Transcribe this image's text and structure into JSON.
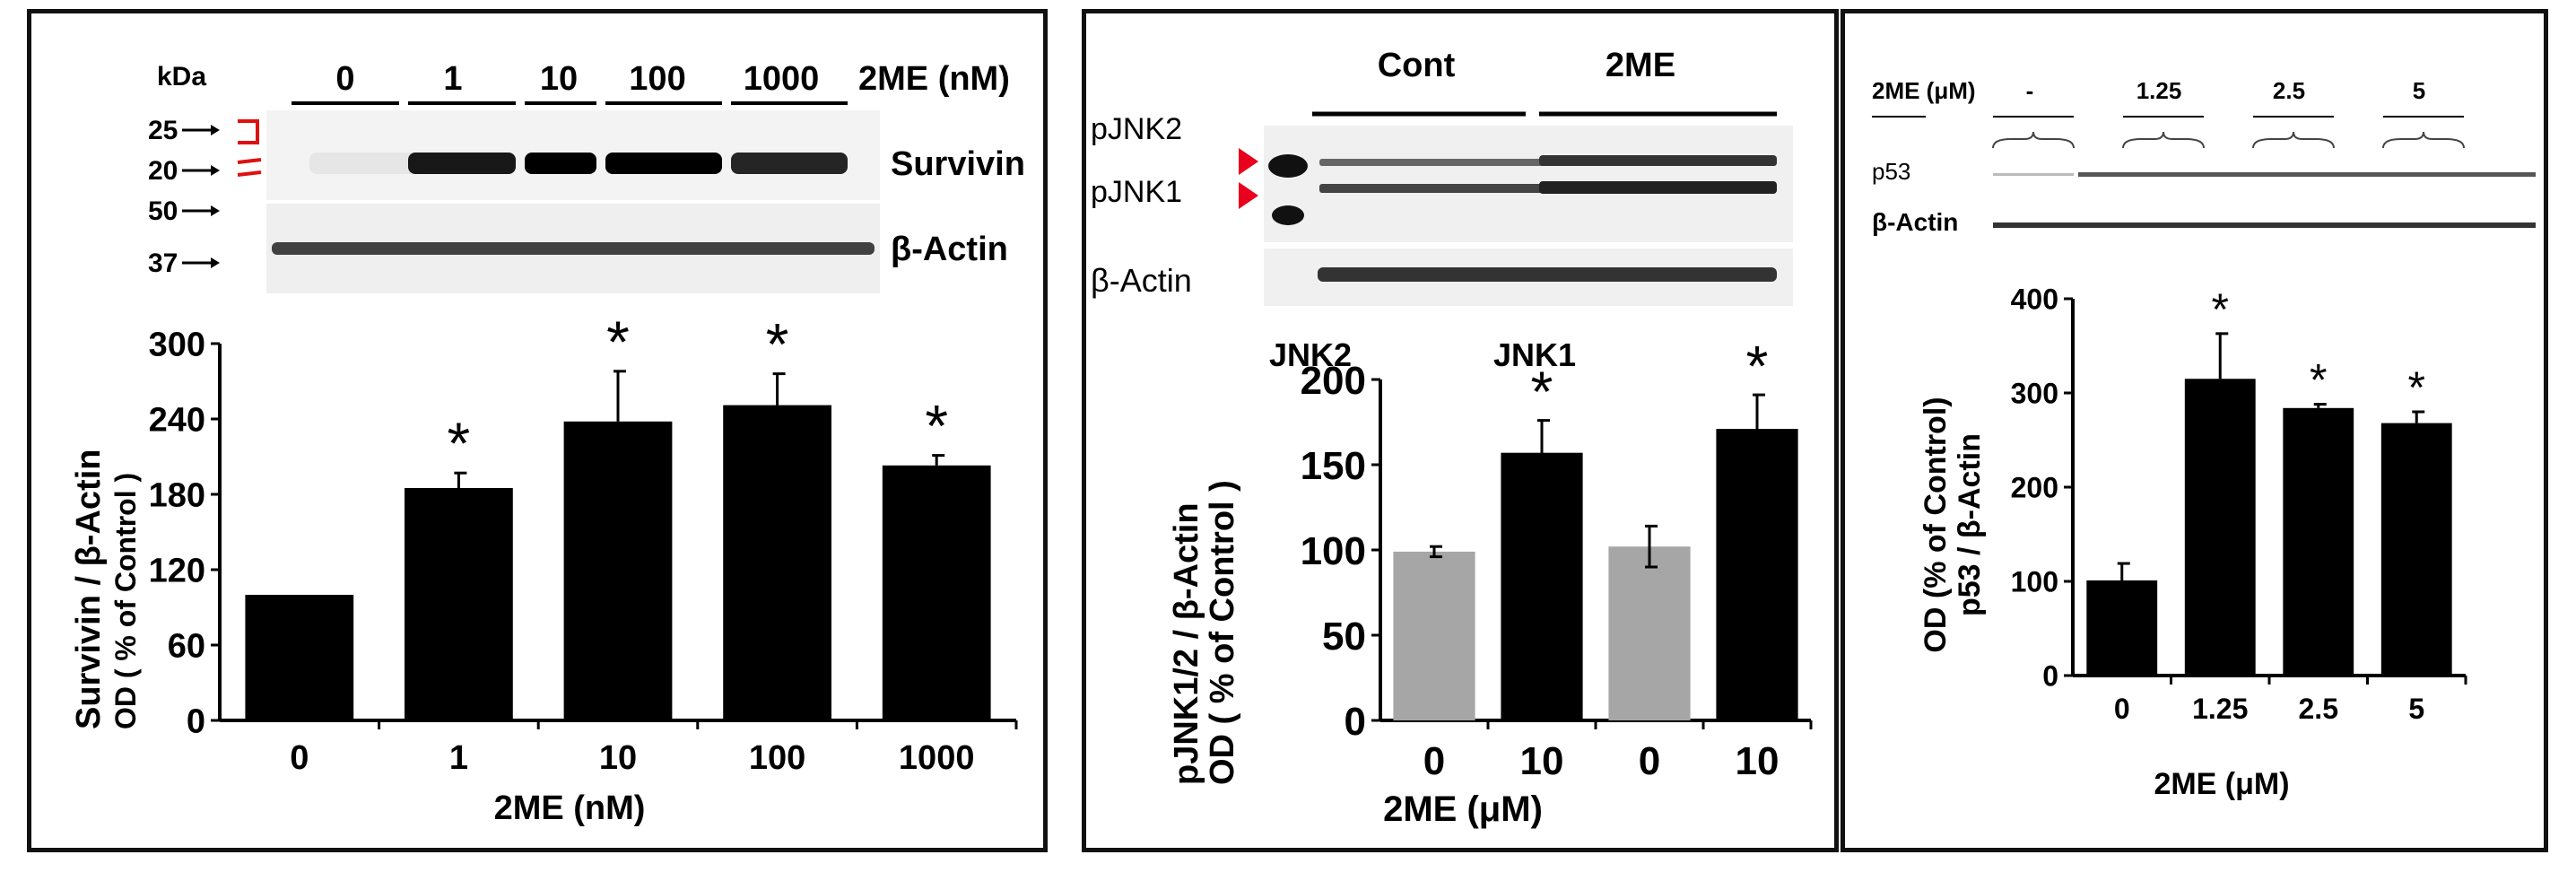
{
  "panel_a": {
    "blot": {
      "kda_label": "kDa",
      "lanes": [
        "0",
        "1",
        "10",
        "100",
        "1000"
      ],
      "treatment_label": "2ME (nM)",
      "markers": [
        "25",
        "20",
        "50",
        "37"
      ],
      "bands": [
        "Survivin",
        "β-Actin"
      ],
      "survivin_intensity": [
        0.05,
        0.9,
        1.0,
        1.0,
        0.85
      ]
    },
    "chart_data": {
      "type": "bar",
      "categories": [
        "0",
        "1",
        "10",
        "100",
        "1000"
      ],
      "values": [
        100,
        185,
        238,
        251,
        203
      ],
      "errors": [
        0,
        12,
        40,
        25,
        8
      ],
      "significant": [
        false,
        true,
        true,
        true,
        true
      ],
      "sig_mark": "*",
      "ylabel_line1": "Survivin / β-Actin",
      "ylabel_line2": "OD ( % of Control )",
      "xlabel": "2ME (nM)",
      "ylim": [
        0,
        300
      ],
      "yticks": [
        "0",
        "60",
        "120",
        "180",
        "240",
        "300"
      ],
      "bar_color": "#000000"
    }
  },
  "panel_b": {
    "blot": {
      "groups": [
        "Cont",
        "2ME"
      ],
      "band_labels": [
        "pJNK2",
        "pJNK1"
      ],
      "actin_label": "β-Actin",
      "arrow_color": "#e8001c"
    },
    "chart_data": {
      "type": "bar",
      "groups": [
        "JNK2",
        "JNK1"
      ],
      "categories": [
        "0",
        "10",
        "0",
        "10"
      ],
      "values": [
        99,
        157,
        102,
        171
      ],
      "errors": [
        3,
        19,
        12,
        20
      ],
      "significant": [
        false,
        true,
        false,
        true
      ],
      "sig_mark": "*",
      "colors": [
        "#a6a6a6",
        "#000000",
        "#a6a6a6",
        "#000000"
      ],
      "ylabel_line1": "pJNK1/2 / β-Actin",
      "ylabel_line2": "OD ( % of Control )",
      "xlabel": "2ME (μM)",
      "ylim": [
        0,
        200
      ],
      "yticks": [
        "0",
        "50",
        "100",
        "150",
        "200"
      ]
    }
  },
  "panel_c": {
    "blot": {
      "treatment_label": "2ME (μM)",
      "lanes": [
        "-",
        "1.25",
        "2.5",
        "5"
      ],
      "band_labels": [
        "p53",
        "β-Actin"
      ]
    },
    "chart_data": {
      "type": "bar",
      "categories": [
        "0",
        "1.25",
        "2.5",
        "5"
      ],
      "values": [
        101,
        315,
        284,
        268
      ],
      "errors": [
        18,
        48,
        4,
        12
      ],
      "significant": [
        false,
        true,
        true,
        true
      ],
      "sig_mark": "*",
      "ylabel_line1": "OD (% of Control)",
      "ylabel_line2": "p53 / β-Actin",
      "xlabel": "2ME (μM)",
      "ylim": [
        0,
        400
      ],
      "yticks": [
        "0",
        "100",
        "200",
        "300",
        "400"
      ],
      "bar_color": "#000000"
    }
  }
}
